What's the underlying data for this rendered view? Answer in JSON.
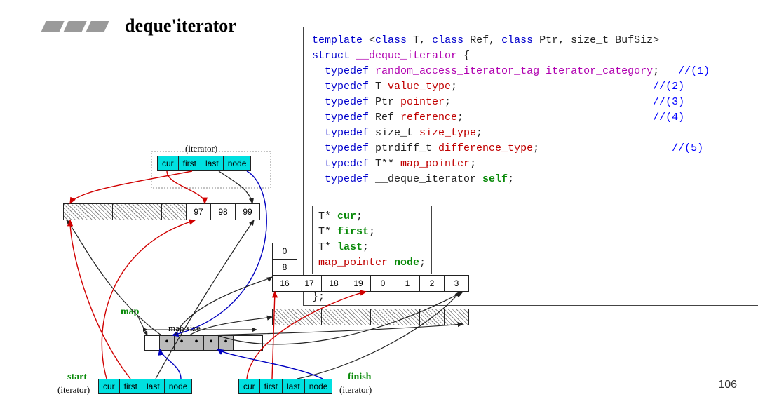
{
  "title": "deque'iterator",
  "page_number": "106",
  "colors": {
    "cyan": "#00e0e0",
    "keyword": "#0000cc",
    "type": "#b000b0",
    "ident": "#c00000",
    "green": "#0a8a0a",
    "comment": "#0000ff",
    "gray_bar": "#9a9a9a"
  },
  "code": {
    "l1_a": "template",
    "l1_b": " <",
    "l1_c": "class",
    "l1_d": " T, ",
    "l1_e": "class",
    "l1_f": " Ref, ",
    "l1_g": "class",
    "l1_h": " Ptr, size_t BufSiz>",
    "l2_a": "struct",
    "l2_b": " ",
    "l2_c": "__deque_iterator",
    "l2_d": " {",
    "l3_a": "  typedef",
    "l3_b": " ",
    "l3_c": "random_access_iterator_tag",
    "l3_d": " ",
    "l3_e": "iterator_category",
    "l3_f": ";   ",
    "l3_g": "//(1)",
    "l4_a": "  typedef",
    "l4_b": " T ",
    "l4_c": "value_type",
    "l4_d": ";",
    "l4_pad": "                               ",
    "l4_g": "//(2)",
    "l5_a": "  typedef",
    "l5_b": " Ptr ",
    "l5_c": "pointer",
    "l5_d": ";",
    "l5_pad": "                                ",
    "l5_g": "//(3)",
    "l6_a": "  typedef",
    "l6_b": " Ref ",
    "l6_c": "reference",
    "l6_d": ";",
    "l6_pad": "                              ",
    "l6_g": "//(4)",
    "l7_a": "  typedef",
    "l7_b": " size_t ",
    "l7_c": "size_type",
    "l7_d": ";",
    "l8_a": "  typedef",
    "l8_b": " ptrdiff_t ",
    "l8_c": "difference_type",
    "l8_d": ";",
    "l8_pad": "                     ",
    "l8_g": "//(5)",
    "l9_a": "  typedef",
    "l9_b": " T** ",
    "l9_c": "map_pointer",
    "l9_d": ";",
    "l10_a": "  typedef",
    "l10_b": " __deque_iterator ",
    "l10_c": "self",
    "l10_d": ";",
    "m1_a": "T* ",
    "m1_b": "cur",
    "m1_c": ";",
    "m2_a": "T* ",
    "m2_b": "first",
    "m2_c": ";",
    "m3_a": "T* ",
    "m3_b": "last",
    "m3_c": ";",
    "m4_a": "map_pointer",
    "m4_b": " ",
    "m4_c": "node",
    "m4_d": ";",
    "tail1": "...",
    "tail2": "};"
  },
  "iter_labels": [
    "cur",
    "first",
    "last",
    "node"
  ],
  "diagram_labels": {
    "iterator_paren": "(iterator)",
    "map": "map",
    "map_size": "map size",
    "start": "start",
    "finish": "finish"
  },
  "buffer_top": [
    "",
    "",
    "",
    "",
    "",
    "97",
    "98",
    "99"
  ],
  "buffer_top_hatch": [
    true,
    true,
    true,
    true,
    true,
    false,
    false,
    false
  ],
  "buffer_mid_vert": [
    "0",
    "8"
  ],
  "buffer_mid": [
    "16",
    "17",
    "18",
    "19",
    "0",
    "1",
    "2",
    "3"
  ],
  "buffer_mid2_count": 8,
  "map_cells": 8,
  "map_filled": [
    false,
    true,
    true,
    true,
    true,
    true,
    false,
    false
  ],
  "map_dots": [
    false,
    true,
    true,
    true,
    true,
    true,
    false,
    false
  ],
  "arrows": {
    "red": "#d00000",
    "blue": "#0000c0",
    "black": "#222222"
  }
}
